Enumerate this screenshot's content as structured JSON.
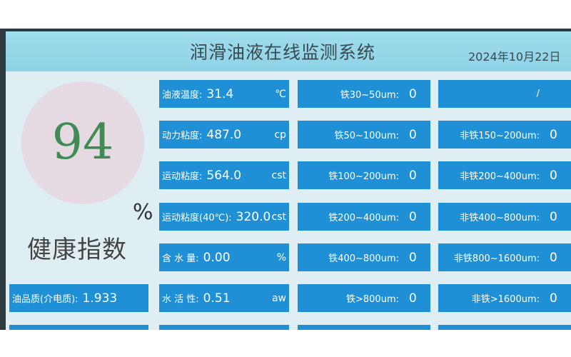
{
  "header": {
    "title": "润滑油液在线监测系统",
    "date": "2024年10月22日"
  },
  "health": {
    "score": "94",
    "unit": "%",
    "label": "健康指数"
  },
  "quality": {
    "label": "油品质(介电质):",
    "value": "1.933"
  },
  "params": [
    {
      "label": "油液温度:",
      "value": "31.4",
      "unit": "℃"
    },
    {
      "label": "动力粘度:",
      "value": "487.0",
      "unit": "cp"
    },
    {
      "label": "运动粘度:",
      "value": "564.0",
      "unit": "cst"
    },
    {
      "label": "运动粘度(40℃):",
      "value": "320.0",
      "unit": "cst"
    },
    {
      "label": "含 水 量:",
      "value": "0.00",
      "unit": "%"
    },
    {
      "label": "水 活 性:",
      "value": "0.51",
      "unit": "aw"
    }
  ],
  "ferrous": [
    {
      "label": "铁30~50um:",
      "value": "0"
    },
    {
      "label": "铁50~100um:",
      "value": "0"
    },
    {
      "label": "铁100~200um:",
      "value": "0"
    },
    {
      "label": "铁200~400um:",
      "value": "0"
    },
    {
      "label": "铁400~800um:",
      "value": "0"
    },
    {
      "label": "铁>800um:",
      "value": "0"
    }
  ],
  "nonferrous": [
    {
      "label": "/",
      "value": ""
    },
    {
      "label": "非铁150~200um:",
      "value": "0"
    },
    {
      "label": "非铁200~400um:",
      "value": "0"
    },
    {
      "label": "非铁400~800um:",
      "value": "0"
    },
    {
      "label": "非铁800~1600um:",
      "value": "0"
    },
    {
      "label": "非铁>1600um:",
      "value": "0"
    }
  ],
  "colors": {
    "box": "#1f8fd6",
    "header": "#9fdcec",
    "score": "#3f8a55"
  }
}
